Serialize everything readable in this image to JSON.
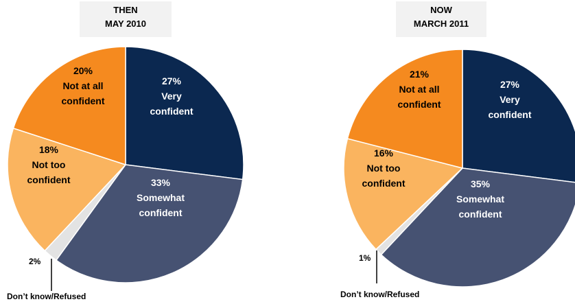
{
  "chart_data": [
    {
      "type": "pie",
      "title_lines": [
        "THEN",
        "MAY 2010"
      ],
      "slices": [
        {
          "label_lines": [
            "27%",
            "Very",
            "confident"
          ],
          "value": 27,
          "color": "#0b2850",
          "text_color": "#ffffff"
        },
        {
          "label_lines": [
            "33%",
            "Somewhat",
            "confident"
          ],
          "value": 33,
          "color": "#465272",
          "text_color": "#ffffff"
        },
        {
          "label_lines": [
            "2%"
          ],
          "value": 2,
          "color": "#e3e3e3",
          "text_color": "#000000",
          "callout": "Don’t know/Refused"
        },
        {
          "label_lines": [
            "18%",
            "Not too",
            "confident"
          ],
          "value": 18,
          "color": "#fab45f",
          "text_color": "#000000"
        },
        {
          "label_lines": [
            "20%",
            "Not at all",
            "confident"
          ],
          "value": 20,
          "color": "#f58a1f",
          "text_color": "#000000"
        }
      ]
    },
    {
      "type": "pie",
      "title_lines": [
        "NOW",
        "MARCH 2011"
      ],
      "slices": [
        {
          "label_lines": [
            "27%",
            "Very",
            "confident"
          ],
          "value": 27,
          "color": "#0b2850",
          "text_color": "#ffffff"
        },
        {
          "label_lines": [
            "35%",
            "Somewhat",
            "confident"
          ],
          "value": 35,
          "color": "#465272",
          "text_color": "#ffffff"
        },
        {
          "label_lines": [
            "1%"
          ],
          "value": 1,
          "color": "#e3e3e3",
          "text_color": "#000000",
          "callout": "Don’t know/Refused"
        },
        {
          "label_lines": [
            "16%",
            "Not too",
            "confident"
          ],
          "value": 16,
          "color": "#fab45f",
          "text_color": "#000000"
        },
        {
          "label_lines": [
            "21%",
            "Not at all",
            "confident"
          ],
          "value": 21,
          "color": "#f58a1f",
          "text_color": "#000000"
        }
      ]
    }
  ]
}
